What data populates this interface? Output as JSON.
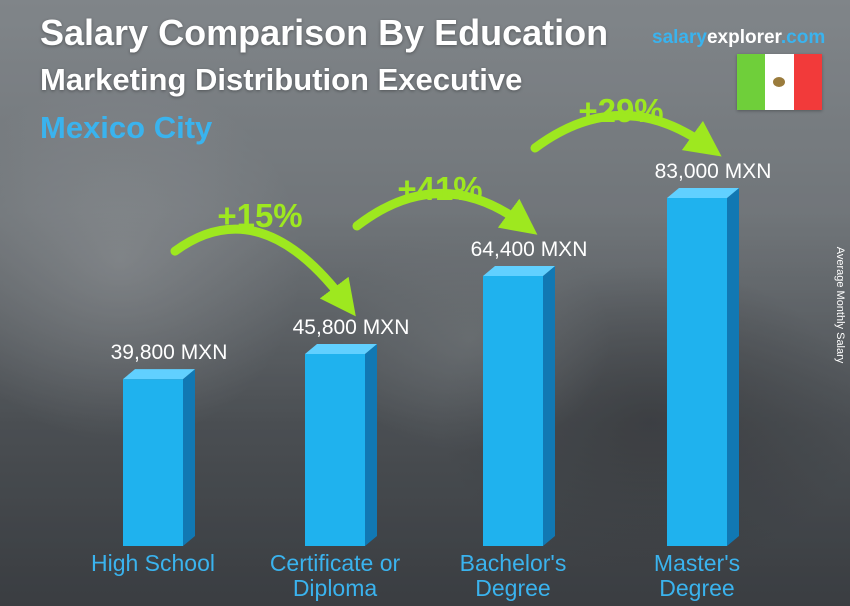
{
  "header": {
    "title": "Salary Comparison By Education",
    "subtitle": "Marketing Distribution Executive",
    "location": "Mexico City"
  },
  "brand": {
    "part1": "salary",
    "part2": "explorer",
    "part3": ".com"
  },
  "flag": {
    "icon": "mexico-flag-icon",
    "colors": [
      "#6fcf3a",
      "#ffffff",
      "#f23a3a"
    ]
  },
  "chart_data": {
    "type": "bar",
    "ylabel": "Average Monthly Salary",
    "categories": [
      [
        "High School"
      ],
      [
        "Certificate or",
        "Diploma"
      ],
      [
        "Bachelor's",
        "Degree"
      ],
      [
        "Master's",
        "Degree"
      ]
    ],
    "values": [
      39800,
      45800,
      64400,
      83000
    ],
    "value_labels": [
      "39,800 MXN",
      "45,800 MXN",
      "64,400 MXN",
      "83,000 MXN"
    ],
    "changes": [
      "+15%",
      "+41%",
      "+29%"
    ],
    "ylim": [
      0,
      83000
    ],
    "grid": false,
    "colors": {
      "bar": "#1fb2ee",
      "bar_side": "#1178b3",
      "bar_top": "#61d0ff",
      "change": "#9ee81f",
      "category": "#3ab3ee"
    }
  }
}
